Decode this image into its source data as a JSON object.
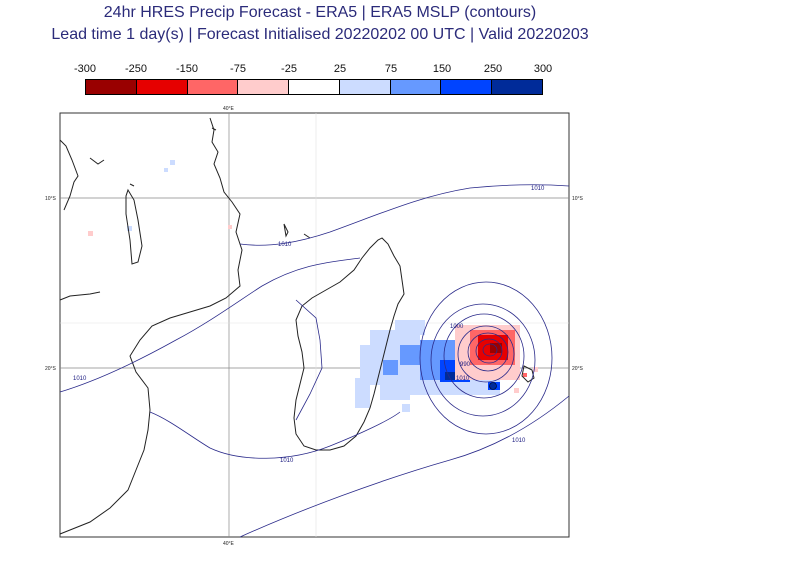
{
  "title": {
    "line1": "24hr HRES Precip Forecast - ERA5 | ERA5 MSLP (contours)",
    "line2": "Lead time 1 day(s) | Forecast Initialised 20220202 00 UTC | Valid 20220203"
  },
  "colorbar": {
    "tick_labels": [
      "-300",
      "-250",
      "-150",
      "-75",
      "-25",
      "25",
      "75",
      "150",
      "250",
      "300"
    ],
    "colors": [
      "#990000",
      "#e60000",
      "#ff6666",
      "#ffcccc",
      "#ffffff",
      "#ccdcff",
      "#6699ff",
      "#0044ff",
      "#002b99"
    ]
  },
  "map": {
    "lon_label_top": "40°E",
    "lon_label_bottom": "40°E",
    "lat_labels_left": [
      "10°S",
      "20°S"
    ],
    "lat_labels_right": [
      "10°S",
      "20°S"
    ],
    "isobar_labels": [
      "1010",
      "1010",
      "1010",
      "1010",
      "1010",
      "1000",
      "990",
      "1010"
    ],
    "features": [
      "Madagascar coastline",
      "African coastline",
      "tropical cyclone precipitation anomaly"
    ]
  }
}
